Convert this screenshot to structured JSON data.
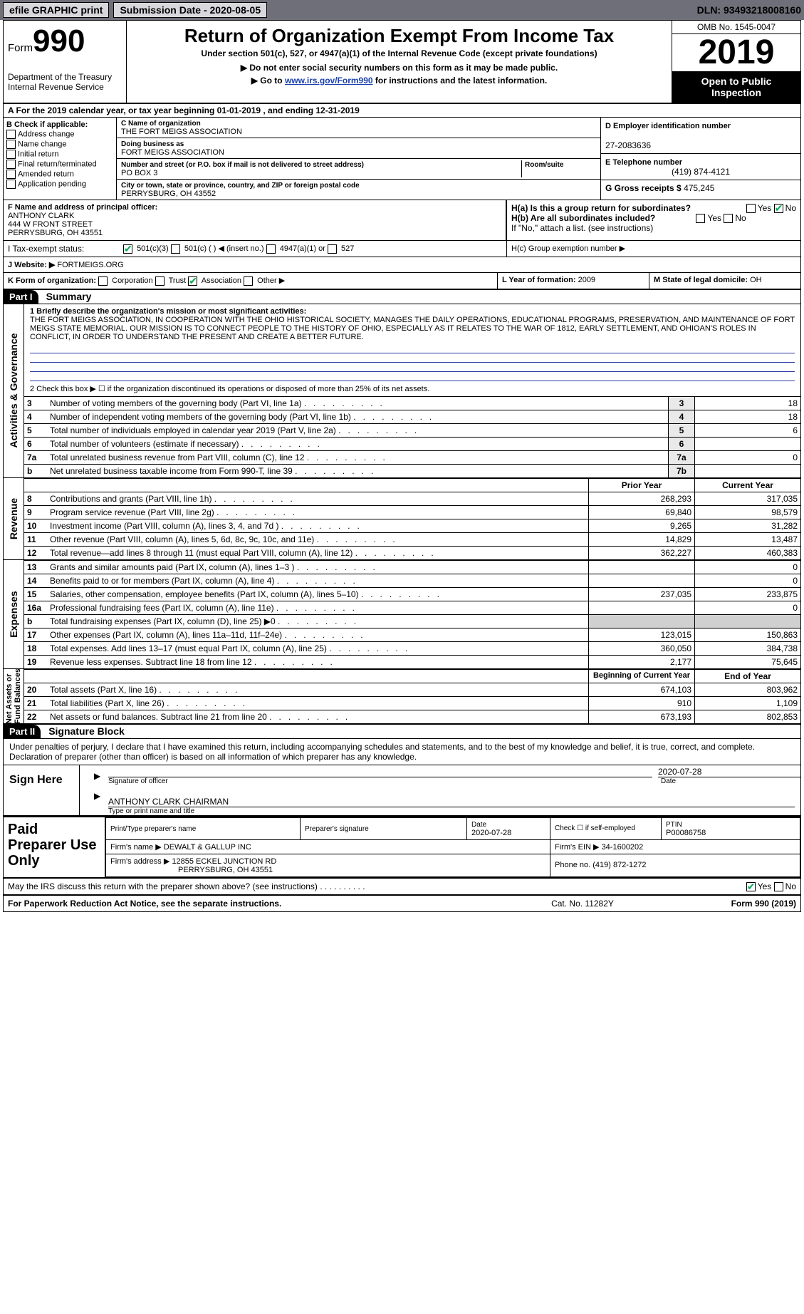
{
  "topbar": {
    "efile": "efile GRAPHIC print",
    "submission": "Submission Date - 2020-08-05",
    "dln": "DLN: 93493218008160"
  },
  "header": {
    "form_word": "Form",
    "form_number": "990",
    "title": "Return of Organization Exempt From Income Tax",
    "subtitle": "Under section 501(c), 527, or 4947(a)(1) of the Internal Revenue Code (except private foundations)",
    "note1": "Do not enter social security numbers on this form as it may be made public.",
    "note2_pre": "Go to ",
    "note2_link": "www.irs.gov/Form990",
    "note2_post": " for instructions and the latest information.",
    "dept": "Department of the Treasury\nInternal Revenue Service",
    "omb": "OMB No. 1545-0047",
    "year": "2019",
    "inspect": "Open to Public Inspection"
  },
  "row_a": "A For the 2019 calendar year, or tax year beginning 01-01-2019     , and ending 12-31-2019",
  "b": {
    "title": "B Check if applicable:",
    "items": [
      "Address change",
      "Name change",
      "Initial return",
      "Final return/terminated",
      "Amended return",
      "Application pending"
    ]
  },
  "c": {
    "name_lbl": "C Name of organization",
    "name": "THE FORT MEIGS ASSOCIATION",
    "dba_lbl": "Doing business as",
    "dba": "FORT MEIGS ASSOCIATION",
    "street_lbl": "Number and street (or P.O. box if mail is not delivered to street address)",
    "room_lbl": "Room/suite",
    "street": "PO BOX 3",
    "city_lbl": "City or town, state or province, country, and ZIP or foreign postal code",
    "city": "PERRYSBURG, OH  43552"
  },
  "d": {
    "ein_lbl": "D Employer identification number",
    "ein": "27-2083636",
    "tel_lbl": "E Telephone number",
    "tel": "(419) 874-4121",
    "gross_lbl": "G Gross receipts $",
    "gross": "475,245"
  },
  "f": {
    "lbl": "F  Name and address of principal officer:",
    "l1": "ANTHONY CLARK",
    "l2": "444 W FRONT STREET",
    "l3": "PERRYSBURG, OH  43551"
  },
  "h": {
    "ha": "H(a)  Is this a group return for subordinates?",
    "hb": "H(b)  Are all subordinates included?",
    "hnote": "If \"No,\" attach a list. (see instructions)",
    "hc": "H(c)  Group exemption number ▶",
    "yes": "Yes",
    "no": "No"
  },
  "tax": {
    "lbl": "I   Tax-exempt status:",
    "o1": "501(c)(3)",
    "o2": "501(c) (   ) ◀ (insert no.)",
    "o3": "4947(a)(1) or",
    "o4": "527"
  },
  "j": {
    "lbl": "J   Website: ▶",
    "val": "FORTMEIGS.ORG"
  },
  "k": {
    "lbl": "K Form of organization:",
    "o1": "Corporation",
    "o2": "Trust",
    "o3": "Association",
    "o4": "Other ▶",
    "l_lbl": "L Year of formation:",
    "l_val": "2009",
    "m_lbl": "M State of legal domicile:",
    "m_val": "OH"
  },
  "part1": {
    "hdr": "Part I",
    "title": "Summary",
    "q1_lbl": "1   Briefly describe the organization's mission or most significant activities:",
    "q1": "THE FORT MEIGS ASSOCIATION, IN COOPERATION WITH THE OHIO HISTORICAL SOCIETY, MANAGES THE DAILY OPERATIONS, EDUCATIONAL PROGRAMS, PRESERVATION, AND MAINTENANCE OF FORT MEIGS STATE MEMORIAL. OUR MISSION IS TO CONNECT PEOPLE TO THE HISTORY OF OHIO, ESPECIALLY AS IT RELATES TO THE WAR OF 1812, EARLY SETTLEMENT, AND OHIOAN'S ROLES IN CONFLICT, IN ORDER TO UNDERSTAND THE PRESENT AND CREATE A BETTER FUTURE.",
    "q2": "2   Check this box ▶ ☐  if the organization discontinued its operations or disposed of more than 25% of its net assets."
  },
  "gov_rows": [
    {
      "n": "3",
      "t": "Number of voting members of the governing body (Part VI, line 1a)",
      "k": "3",
      "v": "18"
    },
    {
      "n": "4",
      "t": "Number of independent voting members of the governing body (Part VI, line 1b)",
      "k": "4",
      "v": "18"
    },
    {
      "n": "5",
      "t": "Total number of individuals employed in calendar year 2019 (Part V, line 2a)",
      "k": "5",
      "v": "6"
    },
    {
      "n": "6",
      "t": "Total number of volunteers (estimate if necessary)",
      "k": "6",
      "v": ""
    },
    {
      "n": "7a",
      "t": "Total unrelated business revenue from Part VIII, column (C), line 12",
      "k": "7a",
      "v": "0"
    },
    {
      "n": "b",
      "t": "Net unrelated business taxable income from Form 990-T, line 39",
      "k": "7b",
      "v": ""
    }
  ],
  "rev_hdr": {
    "py": "Prior Year",
    "cy": "Current Year"
  },
  "rev_rows": [
    {
      "n": "8",
      "t": "Contributions and grants (Part VIII, line 1h)",
      "py": "268,293",
      "cy": "317,035"
    },
    {
      "n": "9",
      "t": "Program service revenue (Part VIII, line 2g)",
      "py": "69,840",
      "cy": "98,579"
    },
    {
      "n": "10",
      "t": "Investment income (Part VIII, column (A), lines 3, 4, and 7d )",
      "py": "9,265",
      "cy": "31,282"
    },
    {
      "n": "11",
      "t": "Other revenue (Part VIII, column (A), lines 5, 6d, 8c, 9c, 10c, and 11e)",
      "py": "14,829",
      "cy": "13,487"
    },
    {
      "n": "12",
      "t": "Total revenue—add lines 8 through 11 (must equal Part VIII, column (A), line 12)",
      "py": "362,227",
      "cy": "460,383"
    }
  ],
  "exp_rows": [
    {
      "n": "13",
      "t": "Grants and similar amounts paid (Part IX, column (A), lines 1–3 )",
      "py": "",
      "cy": "0"
    },
    {
      "n": "14",
      "t": "Benefits paid to or for members (Part IX, column (A), line 4)",
      "py": "",
      "cy": "0"
    },
    {
      "n": "15",
      "t": "Salaries, other compensation, employee benefits (Part IX, column (A), lines 5–10)",
      "py": "237,035",
      "cy": "233,875"
    },
    {
      "n": "16a",
      "t": "Professional fundraising fees (Part IX, column (A), line 11e)",
      "py": "",
      "cy": "0"
    },
    {
      "n": "b",
      "t": "Total fundraising expenses (Part IX, column (D), line 25) ▶0",
      "py": "shade",
      "cy": "shade"
    },
    {
      "n": "17",
      "t": "Other expenses (Part IX, column (A), lines 11a–11d, 11f–24e)",
      "py": "123,015",
      "cy": "150,863"
    },
    {
      "n": "18",
      "t": "Total expenses. Add lines 13–17 (must equal Part IX, column (A), line 25)",
      "py": "360,050",
      "cy": "384,738"
    },
    {
      "n": "19",
      "t": "Revenue less expenses. Subtract line 18 from line 12",
      "py": "2,177",
      "cy": "75,645"
    }
  ],
  "net_hdr": {
    "py": "Beginning of Current Year",
    "cy": "End of Year"
  },
  "net_rows": [
    {
      "n": "20",
      "t": "Total assets (Part X, line 16)",
      "py": "674,103",
      "cy": "803,962"
    },
    {
      "n": "21",
      "t": "Total liabilities (Part X, line 26)",
      "py": "910",
      "cy": "1,109"
    },
    {
      "n": "22",
      "t": "Net assets or fund balances. Subtract line 21 from line 20",
      "py": "673,193",
      "cy": "802,853"
    }
  ],
  "vtabs": {
    "gov": "Activities & Governance",
    "rev": "Revenue",
    "exp": "Expenses",
    "net": "Net Assets or\nFund Balances"
  },
  "part2": {
    "hdr": "Part II",
    "title": "Signature Block",
    "perjury": "Under penalties of perjury, I declare that I have examined this return, including accompanying schedules and statements, and to the best of my knowledge and belief, it is true, correct, and complete. Declaration of preparer (other than officer) is based on all information of which preparer has any knowledge.",
    "sign": "Sign Here",
    "sig_of": "Signature of officer",
    "date": "Date",
    "date_v": "2020-07-28",
    "name": "ANTHONY CLARK  CHAIRMAN",
    "name_lbl": "Type or print name and title",
    "paid": "Paid Preparer Use Only",
    "p_name": "Print/Type preparer's name",
    "p_sig": "Preparer's signature",
    "p_date": "Date",
    "p_date_v": "2020-07-28",
    "p_check": "Check ☐ if self-employed",
    "ptin_lbl": "PTIN",
    "ptin": "P00086758",
    "firm_lbl": "Firm's name    ▶",
    "firm": "DEWALT & GALLUP INC",
    "fein_lbl": "Firm's EIN ▶",
    "fein": "34-1600202",
    "faddr_lbl": "Firm's address ▶",
    "faddr1": "12855 ECKEL JUNCTION RD",
    "faddr2": "PERRYSBURG, OH  43551",
    "phone_lbl": "Phone no.",
    "phone": "(419) 872-1272",
    "may": "May the IRS discuss this return with the preparer shown above? (see instructions)",
    "yes": "Yes",
    "no": "No"
  },
  "footer": {
    "l": "For Paperwork Reduction Act Notice, see the separate instructions.",
    "c": "Cat. No. 11282Y",
    "r": "Form 990 (2019)"
  }
}
